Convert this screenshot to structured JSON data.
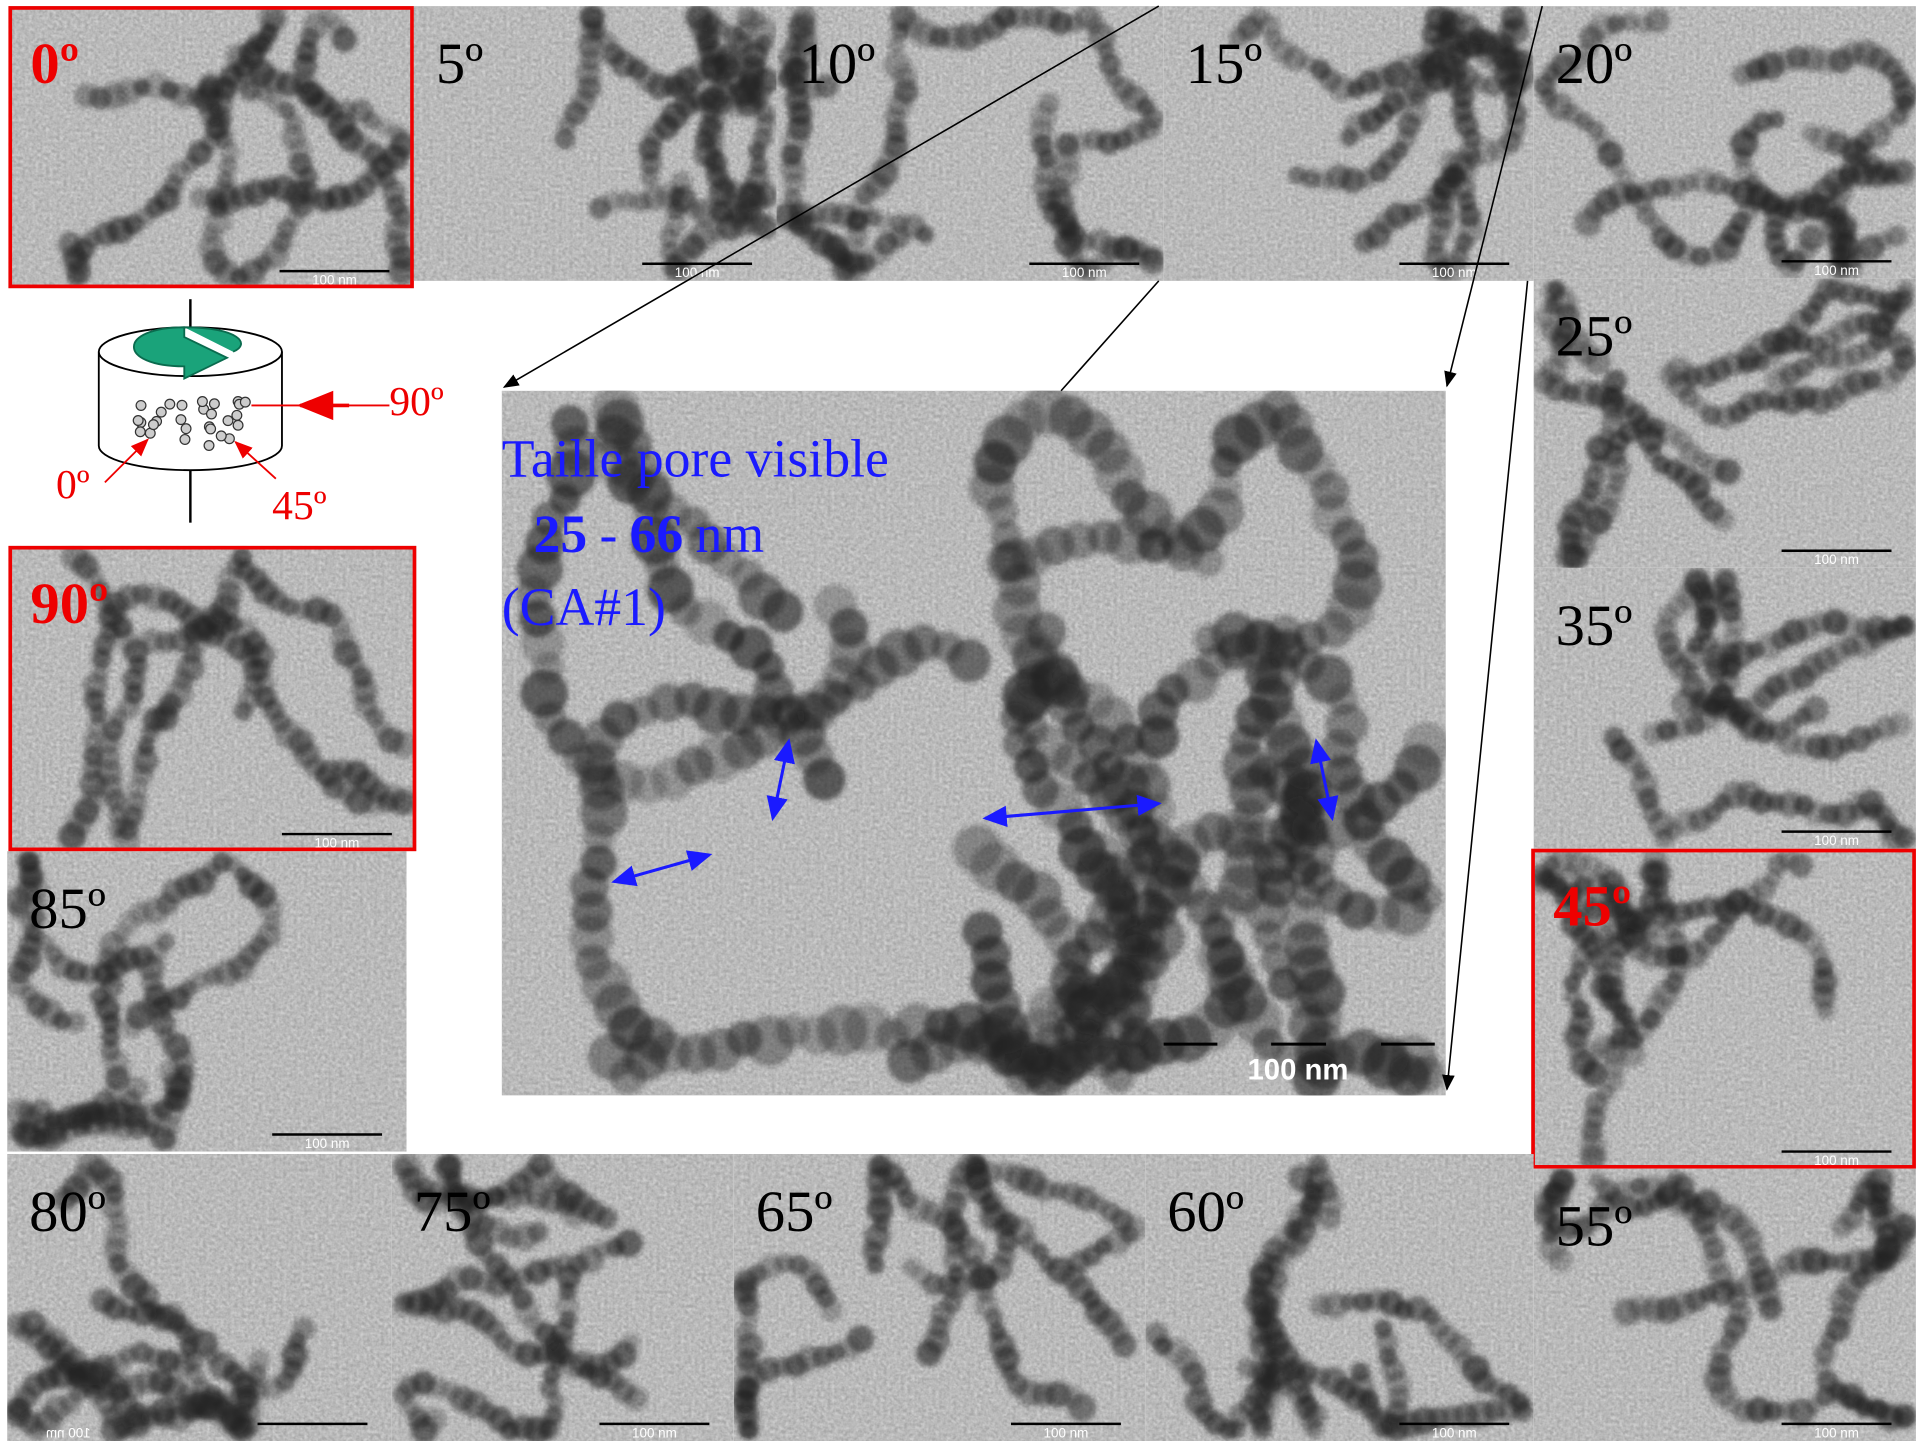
{
  "tiles": [
    {
      "label": "0º",
      "scale_bar": "100 nm",
      "highlighted": true
    },
    {
      "label": "5º",
      "scale_bar": "100 nm"
    },
    {
      "label": "10º",
      "scale_bar": "100 nm"
    },
    {
      "label": "15º",
      "scale_bar": "100 nm"
    },
    {
      "label": "20º",
      "scale_bar": "100 nm"
    },
    {
      "label": "25º",
      "scale_bar": "100 nm"
    },
    {
      "label": "35º",
      "scale_bar": "100 nm"
    },
    {
      "label": "45º",
      "scale_bar": "100 nm",
      "highlighted": true
    },
    {
      "label": "55º",
      "scale_bar": "100 nm"
    },
    {
      "label": "60º",
      "scale_bar": "100 nm"
    },
    {
      "label": "65º",
      "scale_bar": "100 nm"
    },
    {
      "label": "75º",
      "scale_bar": "100 nm"
    },
    {
      "label": "80º",
      "scale_bar": "100 nm"
    },
    {
      "label": "85º",
      "scale_bar": "100 nm"
    },
    {
      "label": "90º",
      "scale_bar": "100 nm",
      "highlighted": true
    }
  ],
  "main": {
    "title": "Taille pore visible",
    "range_low": "25",
    "dash": "-",
    "range_high": "66",
    "unit": "nm",
    "sample": "(CA#1)",
    "scale_bar": "100 nm"
  },
  "diagram": {
    "labels": [
      "90º",
      "0º",
      "45º"
    ]
  }
}
